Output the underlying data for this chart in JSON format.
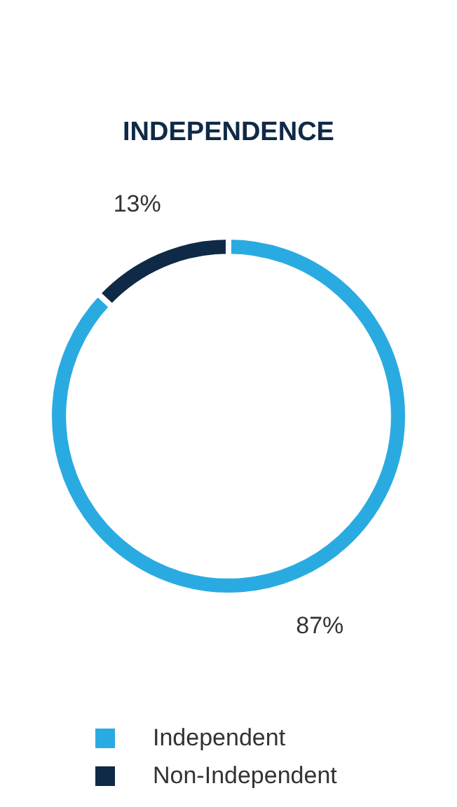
{
  "chart_data": {
    "type": "donut",
    "title": "INDEPENDENCE",
    "categories": [
      "Independent",
      "Non-Independent"
    ],
    "values": [
      87,
      13
    ],
    "colors": [
      "#29abe2",
      "#0f2a47"
    ],
    "value_labels": [
      "87%",
      "13%"
    ],
    "legend": "bottom"
  }
}
